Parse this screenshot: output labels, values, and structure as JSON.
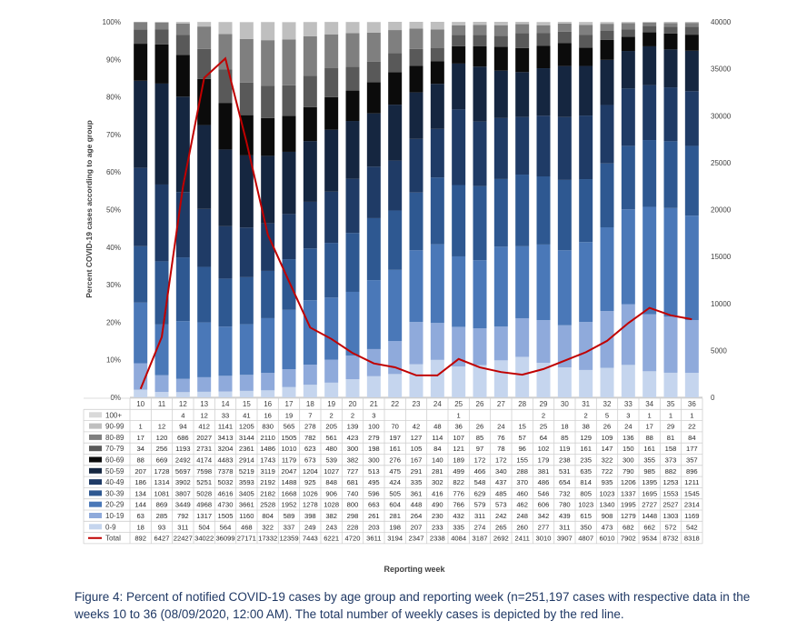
{
  "caption": "Figure 4: Percent of notified COVID-19 cases by age group and reporting week (n=251,197 cases with respective data in the weeks 10 to 36 (08/09/2020, 12:00 AM). The total number of weekly cases is depicted by the red line.",
  "chart_data": {
    "type": "bar",
    "stacked": true,
    "ylabel": "Percent COVID-19 cases according to age group",
    "xlabel": "Reporting week",
    "ylim": [
      0,
      100
    ],
    "y2lim": [
      0,
      40000
    ],
    "y_ticks": [
      "0%",
      "10%",
      "20%",
      "30%",
      "40%",
      "50%",
      "60%",
      "70%",
      "80%",
      "90%",
      "100%"
    ],
    "y2_ticks": [
      "0",
      "5000",
      "10000",
      "15000",
      "20000",
      "25000",
      "30000",
      "35000",
      "40000"
    ],
    "categories": [
      "10",
      "11",
      "12",
      "13",
      "14",
      "15",
      "16",
      "17",
      "18",
      "19",
      "20",
      "21",
      "22",
      "23",
      "24",
      "25",
      "26",
      "27",
      "28",
      "29",
      "30",
      "31",
      "32",
      "33",
      "34",
      "35",
      "36"
    ],
    "series": [
      {
        "name": "100+",
        "color": "#d9d9d9",
        "values": [
          "",
          "",
          "4",
          "12",
          "33",
          "41",
          "16",
          "19",
          "7",
          "2",
          "2",
          "3",
          "",
          "",
          "",
          "1",
          "",
          "",
          "",
          "2",
          "",
          "2",
          "5",
          "3",
          "1",
          "1",
          "1"
        ]
      },
      {
        "name": "90-99",
        "color": "#bfbfbf",
        "values": [
          "1",
          "12",
          "94",
          "412",
          "1141",
          "1205",
          "830",
          "565",
          "278",
          "205",
          "139",
          "100",
          "70",
          "42",
          "48",
          "36",
          "26",
          "24",
          "15",
          "25",
          "18",
          "38",
          "26",
          "24",
          "17",
          "29",
          "22"
        ]
      },
      {
        "name": "80-89",
        "color": "#7f7f7f",
        "values": [
          "17",
          "120",
          "686",
          "2027",
          "3413",
          "3144",
          "2110",
          "1505",
          "782",
          "561",
          "423",
          "279",
          "197",
          "127",
          "114",
          "107",
          "85",
          "76",
          "57",
          "64",
          "85",
          "129",
          "109",
          "136",
          "88",
          "81",
          "84"
        ]
      },
      {
        "name": "70-79",
        "color": "#595959",
        "values": [
          "34",
          "256",
          "1193",
          "2731",
          "3204",
          "2361",
          "1486",
          "1010",
          "623",
          "480",
          "300",
          "198",
          "161",
          "105",
          "84",
          "121",
          "97",
          "78",
          "96",
          "102",
          "119",
          "161",
          "147",
          "150",
          "161",
          "158",
          "177"
        ]
      },
      {
        "name": "60-69",
        "color": "#0b0b0b",
        "values": [
          "88",
          "669",
          "2492",
          "4174",
          "4483",
          "2914",
          "1743",
          "1179",
          "673",
          "539",
          "382",
          "300",
          "276",
          "167",
          "140",
          "189",
          "172",
          "172",
          "155",
          "179",
          "238",
          "235",
          "322",
          "300",
          "355",
          "373",
          "357"
        ]
      },
      {
        "name": "50-59",
        "color": "#152640",
        "values": [
          "207",
          "1728",
          "5697",
          "7598",
          "7378",
          "5219",
          "3119",
          "2047",
          "1204",
          "1027",
          "727",
          "513",
          "475",
          "291",
          "281",
          "499",
          "466",
          "340",
          "288",
          "381",
          "531",
          "635",
          "722",
          "790",
          "985",
          "882",
          "896"
        ]
      },
      {
        "name": "40-49",
        "color": "#1f3b66",
        "values": [
          "186",
          "1314",
          "3902",
          "5251",
          "5032",
          "3593",
          "2192",
          "1488",
          "925",
          "848",
          "681",
          "495",
          "424",
          "335",
          "302",
          "822",
          "548",
          "437",
          "370",
          "486",
          "654",
          "814",
          "935",
          "1206",
          "1395",
          "1253",
          "1211"
        ]
      },
      {
        "name": "30-39",
        "color": "#2e5891",
        "values": [
          "134",
          "1081",
          "3807",
          "5028",
          "4616",
          "3405",
          "2182",
          "1668",
          "1026",
          "906",
          "740",
          "596",
          "505",
          "361",
          "416",
          "776",
          "629",
          "485",
          "460",
          "546",
          "732",
          "805",
          "1023",
          "1337",
          "1695",
          "1553",
          "1545"
        ]
      },
      {
        "name": "20-29",
        "color": "#4a78b8",
        "values": [
          "144",
          "869",
          "3449",
          "4968",
          "4730",
          "3661",
          "2528",
          "1952",
          "1278",
          "1028",
          "800",
          "663",
          "604",
          "448",
          "490",
          "766",
          "579",
          "573",
          "462",
          "606",
          "780",
          "1023",
          "1340",
          "1995",
          "2727",
          "2527",
          "2314"
        ]
      },
      {
        "name": "10-19",
        "color": "#8faadb",
        "values": [
          "63",
          "285",
          "792",
          "1317",
          "1505",
          "1160",
          "804",
          "589",
          "398",
          "382",
          "298",
          "261",
          "281",
          "264",
          "230",
          "432",
          "311",
          "242",
          "248",
          "342",
          "439",
          "615",
          "908",
          "1279",
          "1448",
          "1303",
          "1169"
        ]
      },
      {
        "name": "0-9",
        "color": "#c5d5ee",
        "values": [
          "18",
          "93",
          "311",
          "504",
          "564",
          "468",
          "322",
          "337",
          "249",
          "243",
          "228",
          "203",
          "198",
          "207",
          "233",
          "335",
          "274",
          "265",
          "260",
          "277",
          "311",
          "350",
          "473",
          "682",
          "662",
          "572",
          "542"
        ]
      }
    ],
    "total": {
      "name": "Total",
      "color": "#c00000",
      "values": [
        "892",
        "6427",
        "22427",
        "34022",
        "36099",
        "27171",
        "17332",
        "12359",
        "7443",
        "6221",
        "4720",
        "3611",
        "3194",
        "2347",
        "2338",
        "4084",
        "3187",
        "2692",
        "2411",
        "3010",
        "3907",
        "4807",
        "6010",
        "7902",
        "9534",
        "8732",
        "8318"
      ]
    }
  }
}
